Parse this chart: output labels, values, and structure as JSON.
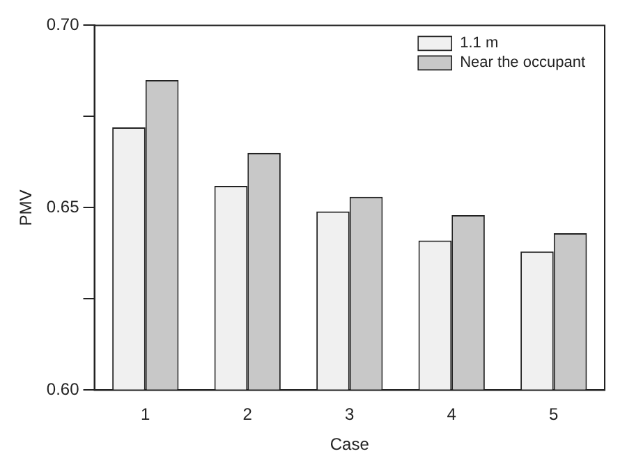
{
  "chart_data": {
    "type": "bar",
    "xlabel": "Case",
    "ylabel": "PMV",
    "categories": [
      "1",
      "2",
      "3",
      "4",
      "5"
    ],
    "series": [
      {
        "name": "1.1 m",
        "color": "#f0f0f0",
        "values": [
          0.672,
          0.656,
          0.649,
          0.641,
          0.638
        ]
      },
      {
        "name": "Near the occupant",
        "color": "#c8c8c8",
        "values": [
          0.685,
          0.665,
          0.653,
          0.648,
          0.643
        ]
      }
    ],
    "ylim": [
      0.6,
      0.7
    ],
    "yticks": [
      {
        "value": 0.6,
        "label": "0.60"
      },
      {
        "value": 0.625,
        "label": null
      },
      0.65,
      {
        "value": 0.675,
        "label": null
      },
      {
        "value": 0.7,
        "label": "0.70"
      }
    ],
    "grid": false,
    "legend": "top right"
  }
}
